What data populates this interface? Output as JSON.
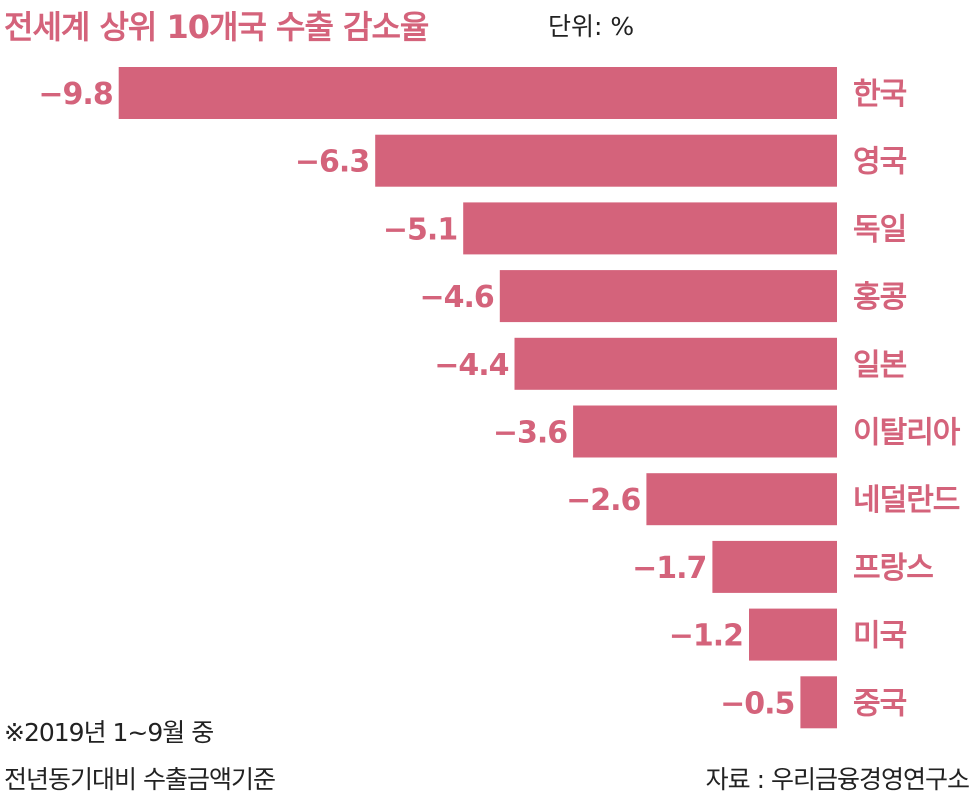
{
  "colors": {
    "accent": "#d4637b",
    "text": "#222222"
  },
  "title": "전세계 상위 10개국 수출 감소율",
  "unit": "단위: %",
  "notes": [
    "※2019년 1~9월 중",
    "전년동기대비 수출금액기준"
  ],
  "source": "자료 : 우리금융경영연구소",
  "chart_data": {
    "type": "bar",
    "orientation": "horizontal",
    "title": "전세계 상위 10개국 수출 감소율",
    "unit": "%",
    "categories": [
      "한국",
      "영국",
      "독일",
      "홍콩",
      "일본",
      "이탈리아",
      "네덜란드",
      "프랑스",
      "미국",
      "중국"
    ],
    "values": [
      -9.8,
      -6.3,
      -5.1,
      -4.6,
      -4.4,
      -3.6,
      -2.6,
      -1.7,
      -1.2,
      -0.5
    ],
    "value_labels": [
      "−9.8",
      "−6.3",
      "−5.1",
      "−4.6",
      "−4.4",
      "−3.6",
      "−2.6",
      "−1.7",
      "−1.2",
      "−0.5"
    ],
    "xlim": [
      -9.8,
      0
    ],
    "grid": false,
    "legend": "none"
  }
}
